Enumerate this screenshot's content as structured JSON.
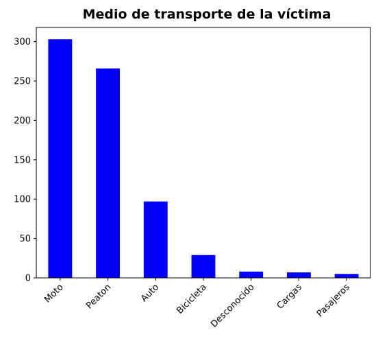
{
  "chart_data": {
    "type": "bar",
    "title": "Medio de transporte de la víctima",
    "xlabel": "",
    "ylabel": "",
    "categories": [
      "Moto",
      "Peaton",
      "Auto",
      "Bicicleta",
      "Desconocido",
      "Cargas",
      "Pasajeros"
    ],
    "values": [
      303,
      266,
      97,
      29,
      8,
      7,
      5
    ],
    "ylim": [
      0,
      318
    ],
    "yticks": [
      0,
      50,
      100,
      150,
      200,
      250,
      300
    ],
    "bar_color": "#0000ff",
    "grid": false,
    "legend": "none"
  }
}
